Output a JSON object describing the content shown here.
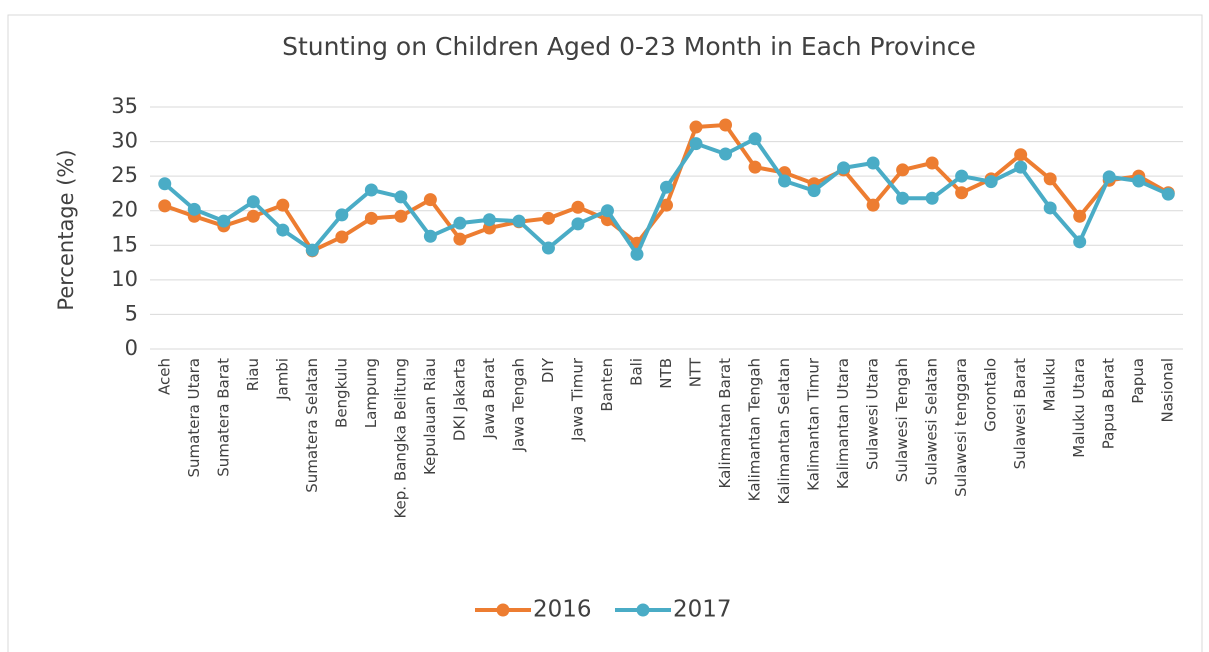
{
  "chart_data": {
    "type": "line",
    "title": "Stunting on Children Aged 0-23 Month in Each Province",
    "y_label": "Percentage (%)",
    "categories": [
      "Aceh",
      "Sumatera Utara",
      "Sumatera Barat",
      "Riau",
      "Jambi",
      "Sumatera Selatan",
      "Bengkulu",
      "Lampung",
      "Kep. Bangka Belitung",
      "Kepulauan Riau",
      "DKI Jakarta",
      "Jawa Barat",
      "Jawa Tengah",
      "DIY",
      "Jawa Timur",
      "Banten",
      "Bali",
      "NTB",
      "NTT",
      "Kalimantan Barat",
      "Kalimantan Tengah",
      "Kalimantan Selatan",
      "Kalimantan Timur",
      "Kalimantan Utara",
      "Sulawesi Utara",
      "Sulawesi Tengah",
      "Sulawesi Selatan",
      "Sulawesi tenggara",
      "Gorontalo",
      "Sulawesi Barat",
      "Maluku",
      "Maluku Utara",
      "Papua Barat",
      "Papua",
      "Nasional"
    ],
    "series": [
      {
        "name": "2016",
        "color": "#ed7d31",
        "values": [
          20.7,
          19.2,
          17.8,
          19.2,
          20.8,
          14.2,
          16.2,
          18.9,
          19.2,
          21.6,
          15.9,
          17.5,
          18.4,
          18.9,
          20.5,
          18.7,
          15.3,
          20.8,
          32.1,
          32.4,
          26.3,
          25.5,
          23.9,
          25.9,
          20.8,
          25.9,
          26.9,
          22.6,
          24.6,
          28.1,
          24.6,
          19.2,
          24.4,
          25.0,
          22.6
        ]
      },
      {
        "name": "2017",
        "color": "#4aacc6",
        "values": [
          23.9,
          20.2,
          18.5,
          21.3,
          17.2,
          14.3,
          19.4,
          23.0,
          22.0,
          16.3,
          18.2,
          18.7,
          18.5,
          14.6,
          18.1,
          20.0,
          13.7,
          23.4,
          29.7,
          28.2,
          30.4,
          24.3,
          22.9,
          26.2,
          26.9,
          21.8,
          21.8,
          25.0,
          24.2,
          26.3,
          20.4,
          15.5,
          24.9,
          24.3,
          22.4
        ]
      }
    ],
    "ylim": [
      0,
      35
    ],
    "yticks": [
      0,
      5,
      10,
      15,
      20,
      25,
      30,
      35
    ],
    "grid": true,
    "legend": "bottom"
  }
}
